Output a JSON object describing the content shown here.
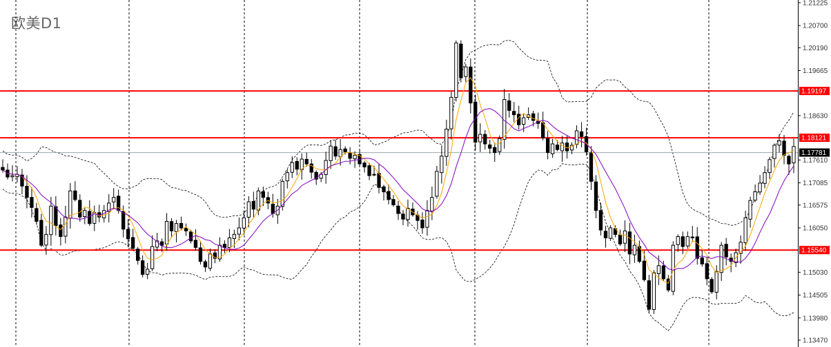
{
  "symbol_title": "欧美D1",
  "chart_data": {
    "type": "candlestick",
    "title": "欧美D1",
    "ylim": [
      1.1347,
      1.2124
    ],
    "y_ticks": [
      "1.21225",
      "1.20700",
      "1.20190",
      "1.19665",
      "1.18630",
      "1.17610",
      "1.17085",
      "1.16575",
      "1.16050",
      "1.15030",
      "1.14505",
      "1.13980",
      "1.13470"
    ],
    "y_tick_values": [
      1.21225,
      1.207,
      1.2019,
      1.19665,
      1.1863,
      1.1761,
      1.17085,
      1.16575,
      1.1605,
      1.1503,
      1.14505,
      1.1398,
      1.1347
    ],
    "horizontal_levels": [
      {
        "value": 1.19197,
        "label": "1.19197",
        "color": "#ff0000"
      },
      {
        "value": 1.18121,
        "label": "1.18121",
        "color": "#ff0000"
      },
      {
        "value": 1.1554,
        "label": "1.15540",
        "color": "#ff0000"
      }
    ],
    "current_price": {
      "value": 1.17781,
      "label": "1.17781",
      "color": "#000000"
    },
    "period_separators": 7,
    "grid": false,
    "colors": {
      "bull_body": "#ffffff",
      "bear_body": "#000000",
      "fast_ma": "#ffa500",
      "slow_ma": "#8000c0",
      "bands": "#000000"
    },
    "closes": [
      1.1738,
      1.1722,
      1.1725,
      1.1728,
      1.1701,
      1.1675,
      1.1652,
      1.162,
      1.1565,
      1.159,
      1.1655,
      1.161,
      1.1585,
      1.163,
      1.169,
      1.167,
      1.163,
      1.1645,
      1.1615,
      1.164,
      1.163,
      1.1645,
      1.1662,
      1.1675,
      1.1645,
      1.1602,
      1.158,
      1.1558,
      1.153,
      1.1498,
      1.151,
      1.1562,
      1.1575,
      1.1565,
      1.162,
      1.1598,
      1.1615,
      1.1605,
      1.1598,
      1.1575,
      1.156,
      1.1528,
      1.1515,
      1.1545,
      1.1535,
      1.1565,
      1.156,
      1.1582,
      1.159,
      1.1605,
      1.1628,
      1.1665,
      1.1648,
      1.169,
      1.1675,
      1.1662,
      1.1638,
      1.1655,
      1.1712,
      1.1732,
      1.1755,
      1.174,
      1.1763,
      1.1752,
      1.1733,
      1.1717,
      1.1728,
      1.176,
      1.1793,
      1.177,
      1.1785,
      1.178,
      1.1765,
      1.1772,
      1.1752,
      1.1745,
      1.1725,
      1.1728,
      1.1698,
      1.1688,
      1.167,
      1.1658,
      1.1638,
      1.1625,
      1.165,
      1.1635,
      1.1622,
      1.1605,
      1.1645,
      1.1675,
      1.1735,
      1.177,
      1.1832,
      1.1905,
      1.203,
      1.195,
      1.1975,
      1.1892,
      1.1802,
      1.182,
      1.1798,
      1.1788,
      1.1778,
      1.181,
      1.19,
      1.1875,
      1.1865,
      1.1842,
      1.1858,
      1.1865,
      1.1852,
      1.1845,
      1.1812,
      1.1778,
      1.1798,
      1.1785,
      1.18,
      1.1782,
      1.1795,
      1.1828,
      1.1815,
      1.178,
      1.1712,
      1.1645,
      1.16,
      1.1582,
      1.1605,
      1.159,
      1.1568,
      1.1598,
      1.1545,
      1.1565,
      1.1528,
      1.1486,
      1.1418,
      1.1502,
      1.1518,
      1.1488,
      1.1462,
      1.1565,
      1.1585,
      1.1562,
      1.1585,
      1.1582,
      1.1535,
      1.1522,
      1.1488,
      1.1458,
      1.1505,
      1.1565,
      1.1538,
      1.1528,
      1.1548,
      1.1572,
      1.1628,
      1.1668,
      1.1688,
      1.1708,
      1.1732,
      1.1762,
      1.1795,
      1.1805,
      1.1772,
      1.1752,
      1.1792
    ]
  }
}
